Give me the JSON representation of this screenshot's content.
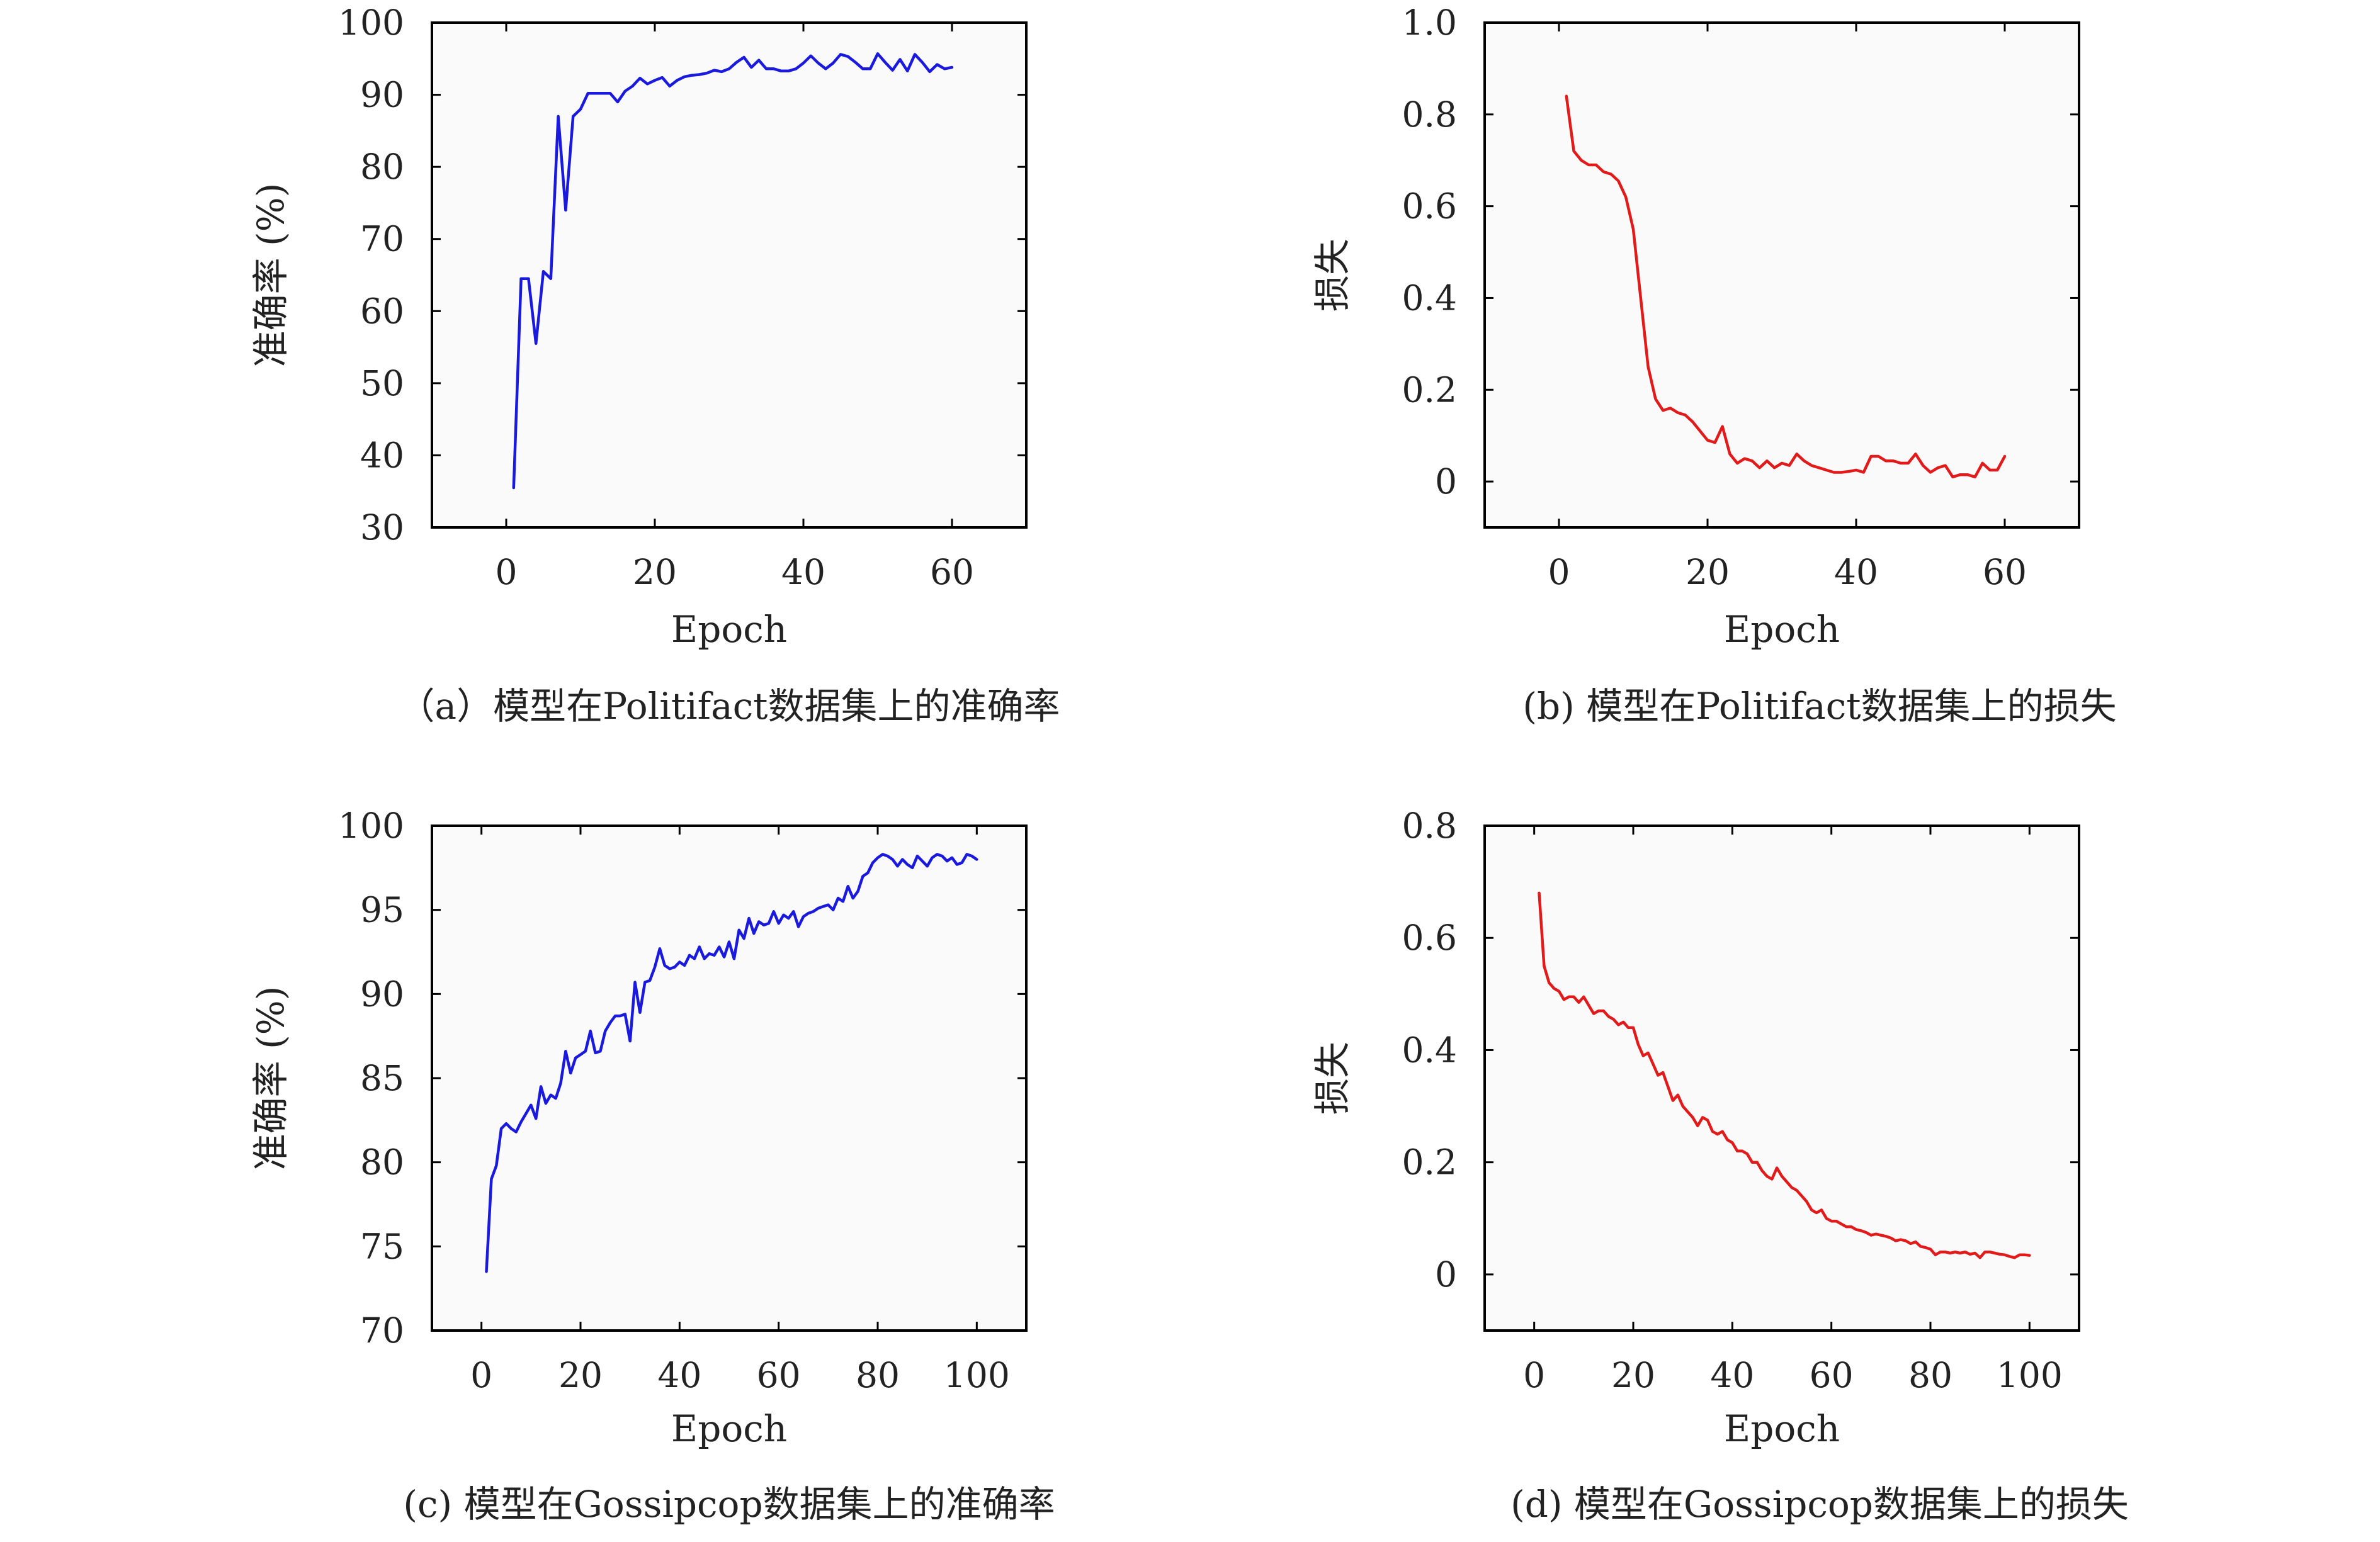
{
  "chart_data": [
    {
      "type": "line",
      "caption": "（a）模型在Politifact数据集上的准确率",
      "xlabel": "Epoch",
      "ylabel": "准确率 (%)",
      "xlim": [
        -10,
        70
      ],
      "ylim": [
        30,
        100
      ],
      "xticks": [
        0,
        20,
        40,
        60
      ],
      "yticks": [
        30,
        40,
        50,
        60,
        70,
        80,
        90,
        100
      ],
      "grid": false,
      "series": [
        {
          "color": "#1a1adf",
          "x": [
            1,
            2,
            3,
            4,
            5,
            6,
            7,
            8,
            9,
            10,
            11,
            12,
            13,
            14,
            15,
            16,
            17,
            18,
            19,
            20,
            21,
            22,
            23,
            24,
            25,
            26,
            27,
            28,
            29,
            30,
            31,
            32,
            33,
            34,
            35,
            36,
            37,
            38,
            39,
            40,
            41,
            42,
            43,
            44,
            45,
            46,
            47,
            48,
            49,
            50,
            51,
            52,
            53,
            54,
            55,
            56,
            57,
            58,
            59,
            60
          ],
          "y": [
            35.5,
            64.5,
            64.5,
            55.5,
            65.5,
            64.5,
            87,
            74,
            87,
            88,
            90.2,
            90.2,
            90.2,
            90.2,
            89,
            90.5,
            91.2,
            92.3,
            91.5,
            92,
            92.4,
            91.2,
            92,
            92.5,
            92.7,
            92.8,
            93,
            93.4,
            93.2,
            93.6,
            94.5,
            95.2,
            93.8,
            94.8,
            93.6,
            93.6,
            93.3,
            93.3,
            93.6,
            94.4,
            95.4,
            94.4,
            93.6,
            94.4,
            95.6,
            95.3,
            94.5,
            93.6,
            93.6,
            95.7,
            94.5,
            93.4,
            94.9,
            93.3,
            95.6,
            94.5,
            93.2,
            94.2,
            93.6,
            93.8
          ]
        }
      ]
    },
    {
      "type": "line",
      "caption": "(b) 模型在Politifact数据集上的损失",
      "xlabel": "Epoch",
      "ylabel": "损失",
      "xlim": [
        -10,
        70
      ],
      "ylim": [
        -0.1,
        1.0
      ],
      "xticks": [
        0,
        20,
        40,
        60
      ],
      "yticks": [
        0,
        0.2,
        0.4,
        0.6,
        0.8,
        1.0
      ],
      "ytick_labels": [
        "0",
        "0.2",
        "0.4",
        "0.6",
        "0.8",
        "1.0"
      ],
      "grid": false,
      "series": [
        {
          "color": "#e31a1a",
          "x": [
            1,
            2,
            3,
            4,
            5,
            6,
            7,
            8,
            9,
            10,
            11,
            12,
            13,
            14,
            15,
            16,
            17,
            18,
            19,
            20,
            21,
            22,
            23,
            24,
            25,
            26,
            27,
            28,
            29,
            30,
            31,
            32,
            33,
            34,
            35,
            36,
            37,
            38,
            39,
            40,
            41,
            42,
            43,
            44,
            45,
            46,
            47,
            48,
            49,
            50,
            51,
            52,
            53,
            54,
            55,
            56,
            57,
            58,
            59,
            60
          ],
          "y": [
            0.84,
            0.72,
            0.7,
            0.69,
            0.69,
            0.675,
            0.67,
            0.655,
            0.62,
            0.55,
            0.4,
            0.25,
            0.18,
            0.155,
            0.16,
            0.15,
            0.145,
            0.13,
            0.11,
            0.09,
            0.085,
            0.12,
            0.06,
            0.04,
            0.05,
            0.045,
            0.03,
            0.045,
            0.03,
            0.04,
            0.035,
            0.06,
            0.045,
            0.035,
            0.03,
            0.025,
            0.02,
            0.02,
            0.022,
            0.025,
            0.02,
            0.055,
            0.055,
            0.045,
            0.045,
            0.04,
            0.04,
            0.06,
            0.035,
            0.02,
            0.03,
            0.035,
            0.01,
            0.015,
            0.015,
            0.01,
            0.04,
            0.025,
            0.025,
            0.055
          ]
        }
      ]
    },
    {
      "type": "line",
      "caption": "(c) 模型在Gossipcop数据集上的准确率",
      "xlabel": "Epoch",
      "ylabel": "准确率 (%)",
      "xlim": [
        -10,
        110
      ],
      "ylim": [
        70,
        100
      ],
      "xticks": [
        0,
        20,
        40,
        60,
        80,
        100
      ],
      "yticks": [
        70,
        75,
        80,
        85,
        90,
        95,
        100
      ],
      "grid": false,
      "series": [
        {
          "color": "#1a1adf",
          "x": [
            1,
            2,
            3,
            4,
            5,
            6,
            7,
            8,
            9,
            10,
            11,
            12,
            13,
            14,
            15,
            16,
            17,
            18,
            19,
            20,
            21,
            22,
            23,
            24,
            25,
            26,
            27,
            28,
            29,
            30,
            31,
            32,
            33,
            34,
            35,
            36,
            37,
            38,
            39,
            40,
            41,
            42,
            43,
            44,
            45,
            46,
            47,
            48,
            49,
            50,
            51,
            52,
            53,
            54,
            55,
            56,
            57,
            58,
            59,
            60,
            61,
            62,
            63,
            64,
            65,
            66,
            67,
            68,
            69,
            70,
            71,
            72,
            73,
            74,
            75,
            76,
            77,
            78,
            79,
            80,
            81,
            82,
            83,
            84,
            85,
            86,
            87,
            88,
            89,
            90,
            91,
            92,
            93,
            94,
            95,
            96,
            97,
            98,
            99,
            100
          ],
          "y": [
            73.5,
            79,
            79.8,
            82,
            82.3,
            82,
            81.8,
            82.4,
            82.9,
            83.4,
            82.6,
            84.5,
            83.5,
            84,
            83.8,
            84.7,
            86.6,
            85.3,
            86.2,
            86.4,
            86.6,
            87.8,
            86.5,
            86.6,
            87.8,
            88.3,
            88.7,
            88.7,
            88.8,
            87.2,
            90.7,
            88.9,
            90.7,
            90.8,
            91.6,
            92.7,
            91.7,
            91.5,
            91.6,
            91.9,
            91.7,
            92.3,
            92.1,
            92.8,
            92.1,
            92.4,
            92.3,
            92.8,
            92.2,
            93.1,
            92.1,
            93.8,
            93.3,
            94.5,
            93.6,
            94.3,
            94.1,
            94.2,
            94.9,
            94.2,
            94.7,
            94.5,
            94.9,
            94,
            94.6,
            94.8,
            94.9,
            95.1,
            95.2,
            95.3,
            95,
            95.7,
            95.5,
            96.4,
            95.7,
            96.1,
            97,
            97.2,
            97.8,
            98.1,
            98.3,
            98.2,
            98.0,
            97.6,
            98.0,
            97.7,
            97.5,
            98.2,
            97.9,
            97.6,
            98.1,
            98.3,
            98.2,
            97.9,
            98.1,
            97.7,
            97.8,
            98.3,
            98.2,
            98.0
          ]
        }
      ]
    },
    {
      "type": "line",
      "caption": "(d) 模型在Gossipcop数据集上的损失",
      "xlabel": "Epoch",
      "ylabel": "损失",
      "xlim": [
        -10,
        110
      ],
      "ylim": [
        -0.1,
        0.8
      ],
      "xticks": [
        0,
        20,
        40,
        60,
        80,
        100
      ],
      "yticks": [
        0,
        0.2,
        0.4,
        0.6,
        0.8
      ],
      "ytick_labels": [
        "0",
        "0.2",
        "0.4",
        "0.6",
        "0.8"
      ],
      "grid": false,
      "series": [
        {
          "color": "#e31a1a",
          "x": [
            1,
            2,
            3,
            4,
            5,
            6,
            7,
            8,
            9,
            10,
            11,
            12,
            13,
            14,
            15,
            16,
            17,
            18,
            19,
            20,
            21,
            22,
            23,
            24,
            25,
            26,
            27,
            28,
            29,
            30,
            31,
            32,
            33,
            34,
            35,
            36,
            37,
            38,
            39,
            40,
            41,
            42,
            43,
            44,
            45,
            46,
            47,
            48,
            49,
            50,
            51,
            52,
            53,
            54,
            55,
            56,
            57,
            58,
            59,
            60,
            61,
            62,
            63,
            64,
            65,
            66,
            67,
            68,
            69,
            70,
            71,
            72,
            73,
            74,
            75,
            76,
            77,
            78,
            79,
            80,
            81,
            82,
            83,
            84,
            85,
            86,
            87,
            88,
            89,
            90,
            91,
            92,
            93,
            94,
            95,
            96,
            97,
            98,
            99,
            100
          ],
          "y": [
            0.68,
            0.55,
            0.52,
            0.51,
            0.505,
            0.49,
            0.495,
            0.495,
            0.485,
            0.495,
            0.48,
            0.465,
            0.47,
            0.47,
            0.46,
            0.455,
            0.445,
            0.45,
            0.44,
            0.44,
            0.41,
            0.39,
            0.395,
            0.375,
            0.355,
            0.36,
            0.335,
            0.31,
            0.32,
            0.3,
            0.29,
            0.28,
            0.265,
            0.28,
            0.275,
            0.255,
            0.25,
            0.255,
            0.24,
            0.235,
            0.22,
            0.22,
            0.215,
            0.2,
            0.2,
            0.185,
            0.175,
            0.17,
            0.19,
            0.175,
            0.165,
            0.155,
            0.15,
            0.14,
            0.13,
            0.115,
            0.11,
            0.115,
            0.1,
            0.095,
            0.095,
            0.09,
            0.085,
            0.085,
            0.08,
            0.078,
            0.075,
            0.07,
            0.072,
            0.07,
            0.068,
            0.065,
            0.06,
            0.062,
            0.06,
            0.055,
            0.058,
            0.05,
            0.048,
            0.045,
            0.035,
            0.04,
            0.04,
            0.038,
            0.04,
            0.038,
            0.04,
            0.036,
            0.038,
            0.03,
            0.04,
            0.04,
            0.038,
            0.036,
            0.035,
            0.032,
            0.03,
            0.035,
            0.035,
            0.034
          ]
        }
      ]
    }
  ]
}
